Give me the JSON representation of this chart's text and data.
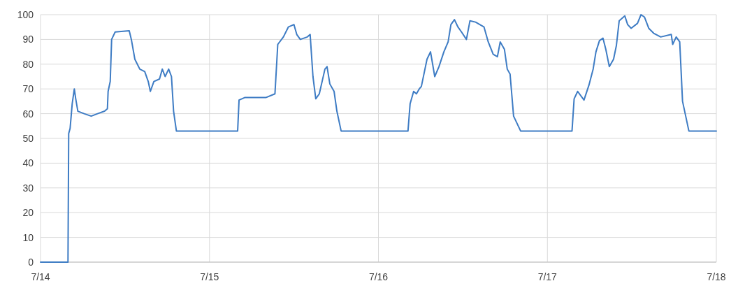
{
  "chart_data": {
    "type": "line",
    "x": [
      "--07-14T00:00",
      "--07-14T03:54",
      "--07-14T04:00",
      "--07-14T04:12",
      "--07-14T04:30",
      "--07-14T04:48",
      "--07-14T05:00",
      "--07-14T05:18",
      "--07-14T06:12",
      "--07-14T07:12",
      "--07-14T08:06",
      "--07-14T09:06",
      "--07-14T09:30",
      "--07-14T09:36",
      "--07-14T09:54",
      "--07-14T10:06",
      "--07-14T10:36",
      "--07-14T12:36",
      "--07-14T12:54",
      "--07-14T13:24",
      "--07-14T14:06",
      "--07-14T14:48",
      "--07-14T15:18",
      "--07-14T15:36",
      "--07-14T16:06",
      "--07-14T16:54",
      "--07-14T17:18",
      "--07-14T17:42",
      "--07-14T18:12",
      "--07-14T18:36",
      "--07-14T18:54",
      "--07-14T19:18",
      "--07-15T00:00",
      "--07-15T04:00",
      "--07-15T04:12",
      "--07-15T05:00",
      "--07-15T06:00",
      "--07-15T08:00",
      "--07-15T09:18",
      "--07-15T09:42",
      "--07-15T10:30",
      "--07-15T11:12",
      "--07-15T12:00",
      "--07-15T12:24",
      "--07-15T12:54",
      "--07-15T13:54",
      "--07-15T14:18",
      "--07-15T14:42",
      "--07-15T15:06",
      "--07-15T15:36",
      "--07-15T16:24",
      "--07-15T16:42",
      "--07-15T17:06",
      "--07-15T17:42",
      "--07-15T18:06",
      "--07-15T18:42",
      "--07-16T00:00",
      "--07-16T04:12",
      "--07-16T04:30",
      "--07-16T05:00",
      "--07-16T05:24",
      "--07-16T05:48",
      "--07-16T06:06",
      "--07-16T06:54",
      "--07-16T07:24",
      "--07-16T08:00",
      "--07-16T08:36",
      "--07-16T09:18",
      "--07-16T09:54",
      "--07-16T10:18",
      "--07-16T10:48",
      "--07-16T11:18",
      "--07-16T11:48",
      "--07-16T12:30",
      "--07-16T13:00",
      "--07-16T13:48",
      "--07-16T15:00",
      "--07-16T15:36",
      "--07-16T16:18",
      "--07-16T16:54",
      "--07-16T17:18",
      "--07-16T17:54",
      "--07-16T18:18",
      "--07-16T18:42",
      "--07-16T19:12",
      "--07-16T20:12",
      "--07-17T00:00",
      "--07-17T03:30",
      "--07-17T03:48",
      "--07-17T04:18",
      "--07-17T05:12",
      "--07-17T05:54",
      "--07-17T06:30",
      "--07-17T06:54",
      "--07-17T07:24",
      "--07-17T07:54",
      "--07-17T08:18",
      "--07-17T08:48",
      "--07-17T09:24",
      "--07-17T09:48",
      "--07-17T10:12",
      "--07-17T11:00",
      "--07-17T11:24",
      "--07-17T11:54",
      "--07-17T12:48",
      "--07-17T13:18",
      "--07-17T13:48",
      "--07-17T14:24",
      "--07-17T15:06",
      "--07-17T16:06",
      "--07-17T17:36",
      "--07-17T17:48",
      "--07-17T18:18",
      "--07-17T18:48",
      "--07-17T19:12",
      "--07-17T20:06",
      "--07-18T00:00"
    ],
    "series": [
      {
        "color": "#3e7cc4",
        "values": [
          0,
          0,
          52,
          54,
          64,
          70,
          66,
          61,
          60,
          59,
          60,
          61,
          62,
          69,
          73,
          90,
          93,
          93.5,
          90,
          82,
          78,
          77,
          73,
          69,
          73,
          74,
          78,
          75,
          78,
          75,
          61,
          53,
          53,
          53,
          65.5,
          66.5,
          66.5,
          66.5,
          68,
          88,
          91,
          95,
          96,
          92,
          90,
          91,
          92,
          75,
          66,
          68,
          78,
          79,
          72,
          69,
          61,
          53,
          53,
          53,
          64,
          69,
          68,
          70,
          71,
          82,
          85,
          75,
          79,
          85,
          89,
          96,
          98,
          95,
          93,
          90,
          97.5,
          97,
          95,
          89,
          84,
          83,
          89,
          86,
          78,
          76,
          59,
          53,
          53,
          53,
          66,
          69,
          65.5,
          71.5,
          78,
          85,
          89.5,
          90.5,
          86,
          79,
          82,
          87.5,
          97.5,
          99.5,
          96,
          94.5,
          96.5,
          100,
          99,
          94.5,
          92.5,
          91,
          92,
          88,
          91,
          89,
          65,
          53,
          53
        ]
      }
    ],
    "xlim": [
      "--07-14",
      "--07-18"
    ],
    "xticks": [
      {
        "value": "--07-14",
        "label": "7/14"
      },
      {
        "value": "--07-15",
        "label": "7/15"
      },
      {
        "value": "--07-16",
        "label": "7/16"
      },
      {
        "value": "--07-17",
        "label": "7/17"
      },
      {
        "value": "--07-18",
        "label": "7/18"
      }
    ],
    "ylim": [
      0,
      100
    ],
    "yticks": [
      0,
      10,
      20,
      30,
      40,
      50,
      60,
      70,
      80,
      90,
      100
    ],
    "grid": true
  }
}
